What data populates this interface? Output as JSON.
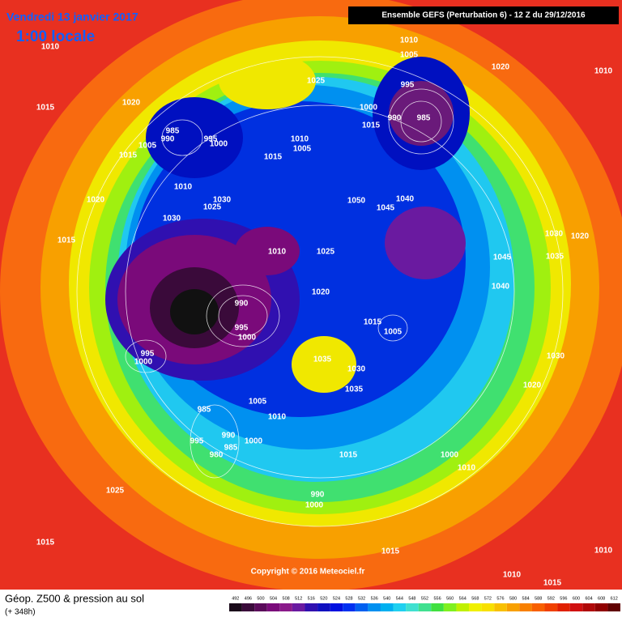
{
  "header": {
    "date": "Vendredi 13 janvier 2017",
    "time": "1:00 locale",
    "run": "Ensemble GEFS  (Perturbation 6)  -  12 Z du 29/12/2016"
  },
  "copyright": "Copyright © 2016 Meteociel.fr",
  "footer": {
    "title": "Géop. Z500 & pression au sol",
    "lead": "(+ 348h)"
  },
  "pressure_labels": [
    1010,
    1010,
    1005,
    1020,
    1010,
    1025,
    995,
    1015,
    1020,
    1000,
    990,
    985,
    1015,
    985,
    990,
    995,
    1005,
    1000,
    1010,
    1005,
    1015,
    1015,
    1010,
    1030,
    1025,
    1050,
    1040,
    1045,
    1020,
    1030,
    1015,
    1010,
    1025,
    1030,
    1020,
    1045,
    1035,
    1040,
    1020,
    990,
    995,
    1000,
    1015,
    1005,
    995,
    1000,
    1035,
    1030,
    1035,
    1030,
    1020,
    1005,
    985,
    1010,
    990,
    995,
    1000,
    985,
    980,
    1015,
    1000,
    1010,
    1025,
    990,
    1000,
    1015,
    1015,
    1010,
    1010,
    1015
  ],
  "colorbar": {
    "ticks": [
      492,
      496,
      500,
      504,
      508,
      512,
      516,
      520,
      524,
      528,
      532,
      536,
      540,
      544,
      548,
      552,
      556,
      560,
      564,
      568,
      572,
      576,
      580,
      584,
      588,
      592,
      596,
      600,
      604,
      608,
      612
    ],
    "colors": [
      "#1a0a1a",
      "#3a0a3a",
      "#5a0a5a",
      "#7a0a7a",
      "#8a1a8a",
      "#6a1aa0",
      "#3010b0",
      "#1010c0",
      "#0010e0",
      "#0030f0",
      "#0060f0",
      "#0090f0",
      "#00b0f0",
      "#20d0f0",
      "#40e0d0",
      "#40e090",
      "#40e040",
      "#80f020",
      "#c0f000",
      "#f0f000",
      "#f8e000",
      "#f8c000",
      "#f8a000",
      "#f88000",
      "#f86000",
      "#f04000",
      "#e02000",
      "#d01010",
      "#b00808",
      "#900000",
      "#600000"
    ]
  }
}
